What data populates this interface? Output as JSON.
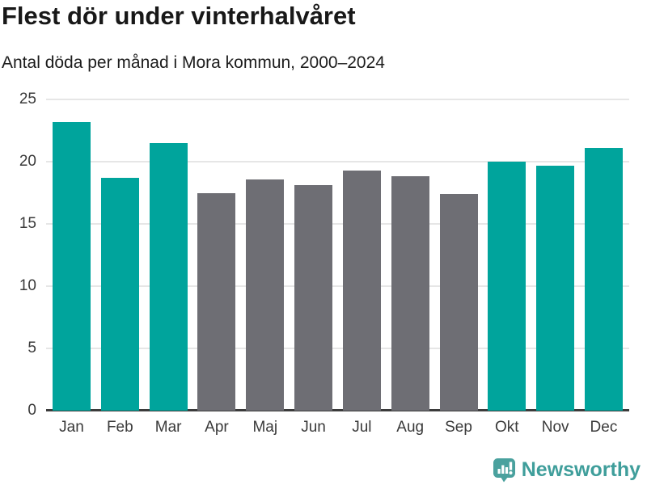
{
  "header": {
    "title": "Flest dör under vinterhalvåret",
    "subtitle": "Antal döda per månad i Mora kommun, 2000–2024"
  },
  "chart_data": {
    "type": "bar",
    "title": "Flest dör under vinterhalvåret",
    "subtitle": "Antal döda per månad i Mora kommun, 2000–2024",
    "categories": [
      "Jan",
      "Feb",
      "Mar",
      "Apr",
      "Maj",
      "Jun",
      "Jul",
      "Aug",
      "Sep",
      "Okt",
      "Nov",
      "Dec"
    ],
    "values": [
      23.2,
      18.7,
      21.5,
      17.5,
      18.6,
      18.1,
      19.3,
      18.8,
      17.4,
      20.0,
      19.7,
      21.1
    ],
    "highlighted": [
      true,
      true,
      true,
      false,
      false,
      false,
      false,
      false,
      false,
      true,
      true,
      true
    ],
    "xlabel": "",
    "ylabel": "",
    "ylim": [
      0,
      25
    ],
    "yticks": [
      0,
      5,
      10,
      15,
      20,
      25
    ],
    "grid": "horizontal",
    "legend_position": "none",
    "colors": {
      "highlight_bar": "#00a49c",
      "muted_bar": "#6e6e74",
      "gridline": "#e6e6e6",
      "axis_line": "#3b3b3b",
      "tick_text": "#3a3a3a"
    }
  },
  "footer": {
    "brand": "Newsworthy",
    "brand_color": "#3f9e9b",
    "logo_icon": "bar-chart-speech-bubble-icon",
    "logo_color": "#4aa19e"
  }
}
